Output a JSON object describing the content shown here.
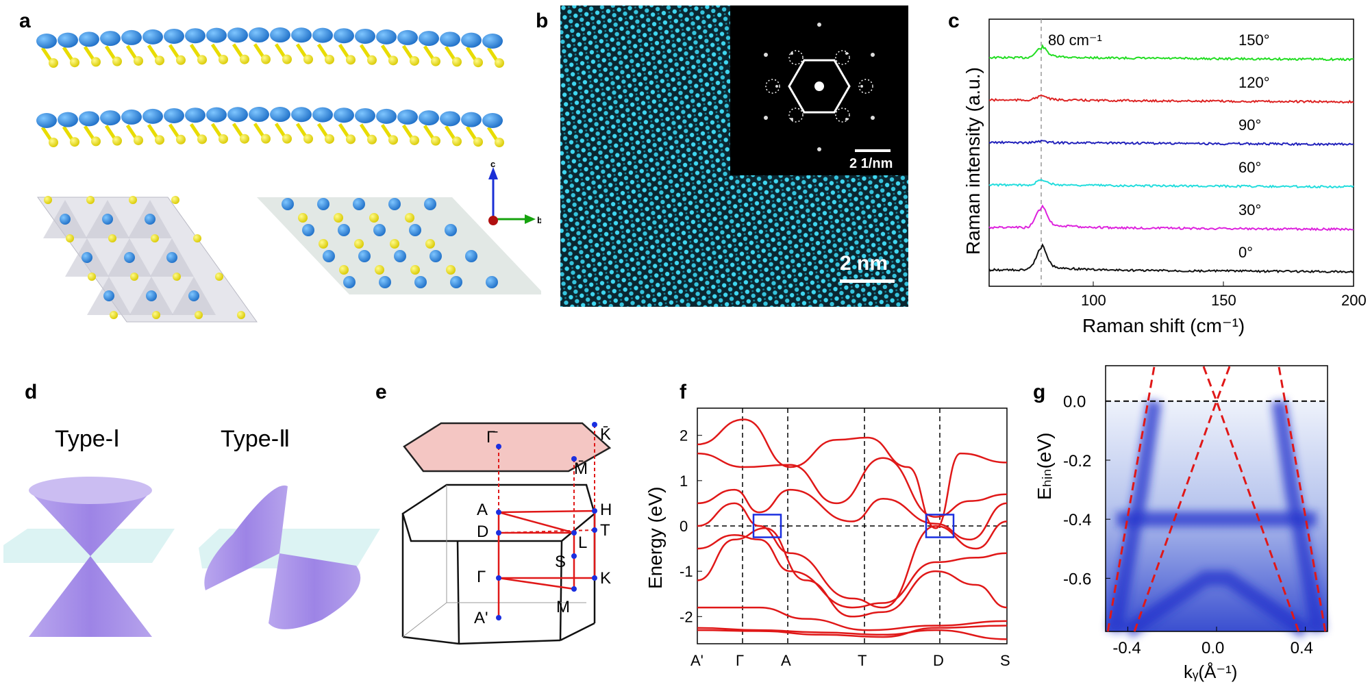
{
  "panel_labels": {
    "a": "a",
    "b": "b",
    "c": "c",
    "d": "d",
    "e": "e",
    "f": "f",
    "g": "g"
  },
  "panel_a": {
    "axes": {
      "c": "c",
      "b": "b"
    }
  },
  "panel_b": {
    "stem_scale": "2 nm",
    "fft_scale": "2 1/nm"
  },
  "panel_c": {
    "peak_label": "80 cm⁻¹",
    "colors": {
      "150": "#22dd22",
      "120": "#dd2222",
      "90": "#2222bb",
      "60": "#22dddd",
      "30": "#dd22dd",
      "0": "#111111"
    }
  },
  "panel_d": {
    "type1": "Type-Ⅰ",
    "type2": "Type-Ⅱ"
  },
  "panel_e": {
    "points": {
      "Gbar": "Γ̄",
      "Kbar": "K̄",
      "Mbar": "M̄",
      "A": "A",
      "H": "H",
      "D": "D",
      "L": "L",
      "T": "T",
      "S": "S",
      "Gamma": "Γ",
      "K": "K",
      "M": "M",
      "Aprime": "A'"
    }
  },
  "panel_g": {
    "color_map": "#2233cc"
  },
  "chart_data": [
    {
      "type": "line",
      "title": "",
      "xlabel": "Raman shift (cm⁻¹)",
      "ylabel": "Raman intensity (a.u.)",
      "xlim": [
        60,
        200
      ],
      "xticks": [
        100,
        150,
        200
      ],
      "xtick_labels": [
        "100",
        "150",
        "200"
      ],
      "reference_line_x": 80,
      "series": [
        {
          "name": "150°",
          "offset": 5,
          "peak_height": 0.28
        },
        {
          "name": "120°",
          "offset": 4,
          "peak_height": 0.12
        },
        {
          "name": "90°",
          "offset": 3,
          "peak_height": 0.04
        },
        {
          "name": "60°",
          "offset": 2,
          "peak_height": 0.14
        },
        {
          "name": "30°",
          "offset": 1,
          "peak_height": 0.55
        },
        {
          "name": "0°",
          "offset": 0,
          "peak_height": 0.62
        }
      ]
    },
    {
      "type": "line",
      "title": "",
      "xlabel": "",
      "ylabel": "Energy (eV)",
      "ylim": [
        -2.6,
        2.6
      ],
      "yticks": [
        2,
        1,
        0,
        -1,
        -2
      ],
      "ytick_labels": [
        "2",
        "1",
        "0",
        "-1",
        "-2"
      ],
      "xtick_labels": [
        "A'",
        "Γ",
        "A",
        "T",
        "D",
        "S"
      ]
    },
    {
      "type": "heatmap",
      "title": "",
      "xlabel": "kᵧ(Å⁻¹)",
      "ylabel": "Eₕᵢₙ(eV)",
      "xlim": [
        -0.5,
        0.5
      ],
      "ylim": [
        -0.78,
        0.12
      ],
      "xticks": [
        -0.4,
        0.0,
        0.4
      ],
      "xtick_labels": [
        "-0.4",
        "0.0",
        "0.4"
      ],
      "yticks": [
        0.0,
        -0.2,
        -0.4,
        -0.6
      ],
      "ytick_labels": [
        "0.0",
        "-0.2",
        "-0.4",
        "-0.6"
      ],
      "fermi_level": 0.0
    }
  ]
}
